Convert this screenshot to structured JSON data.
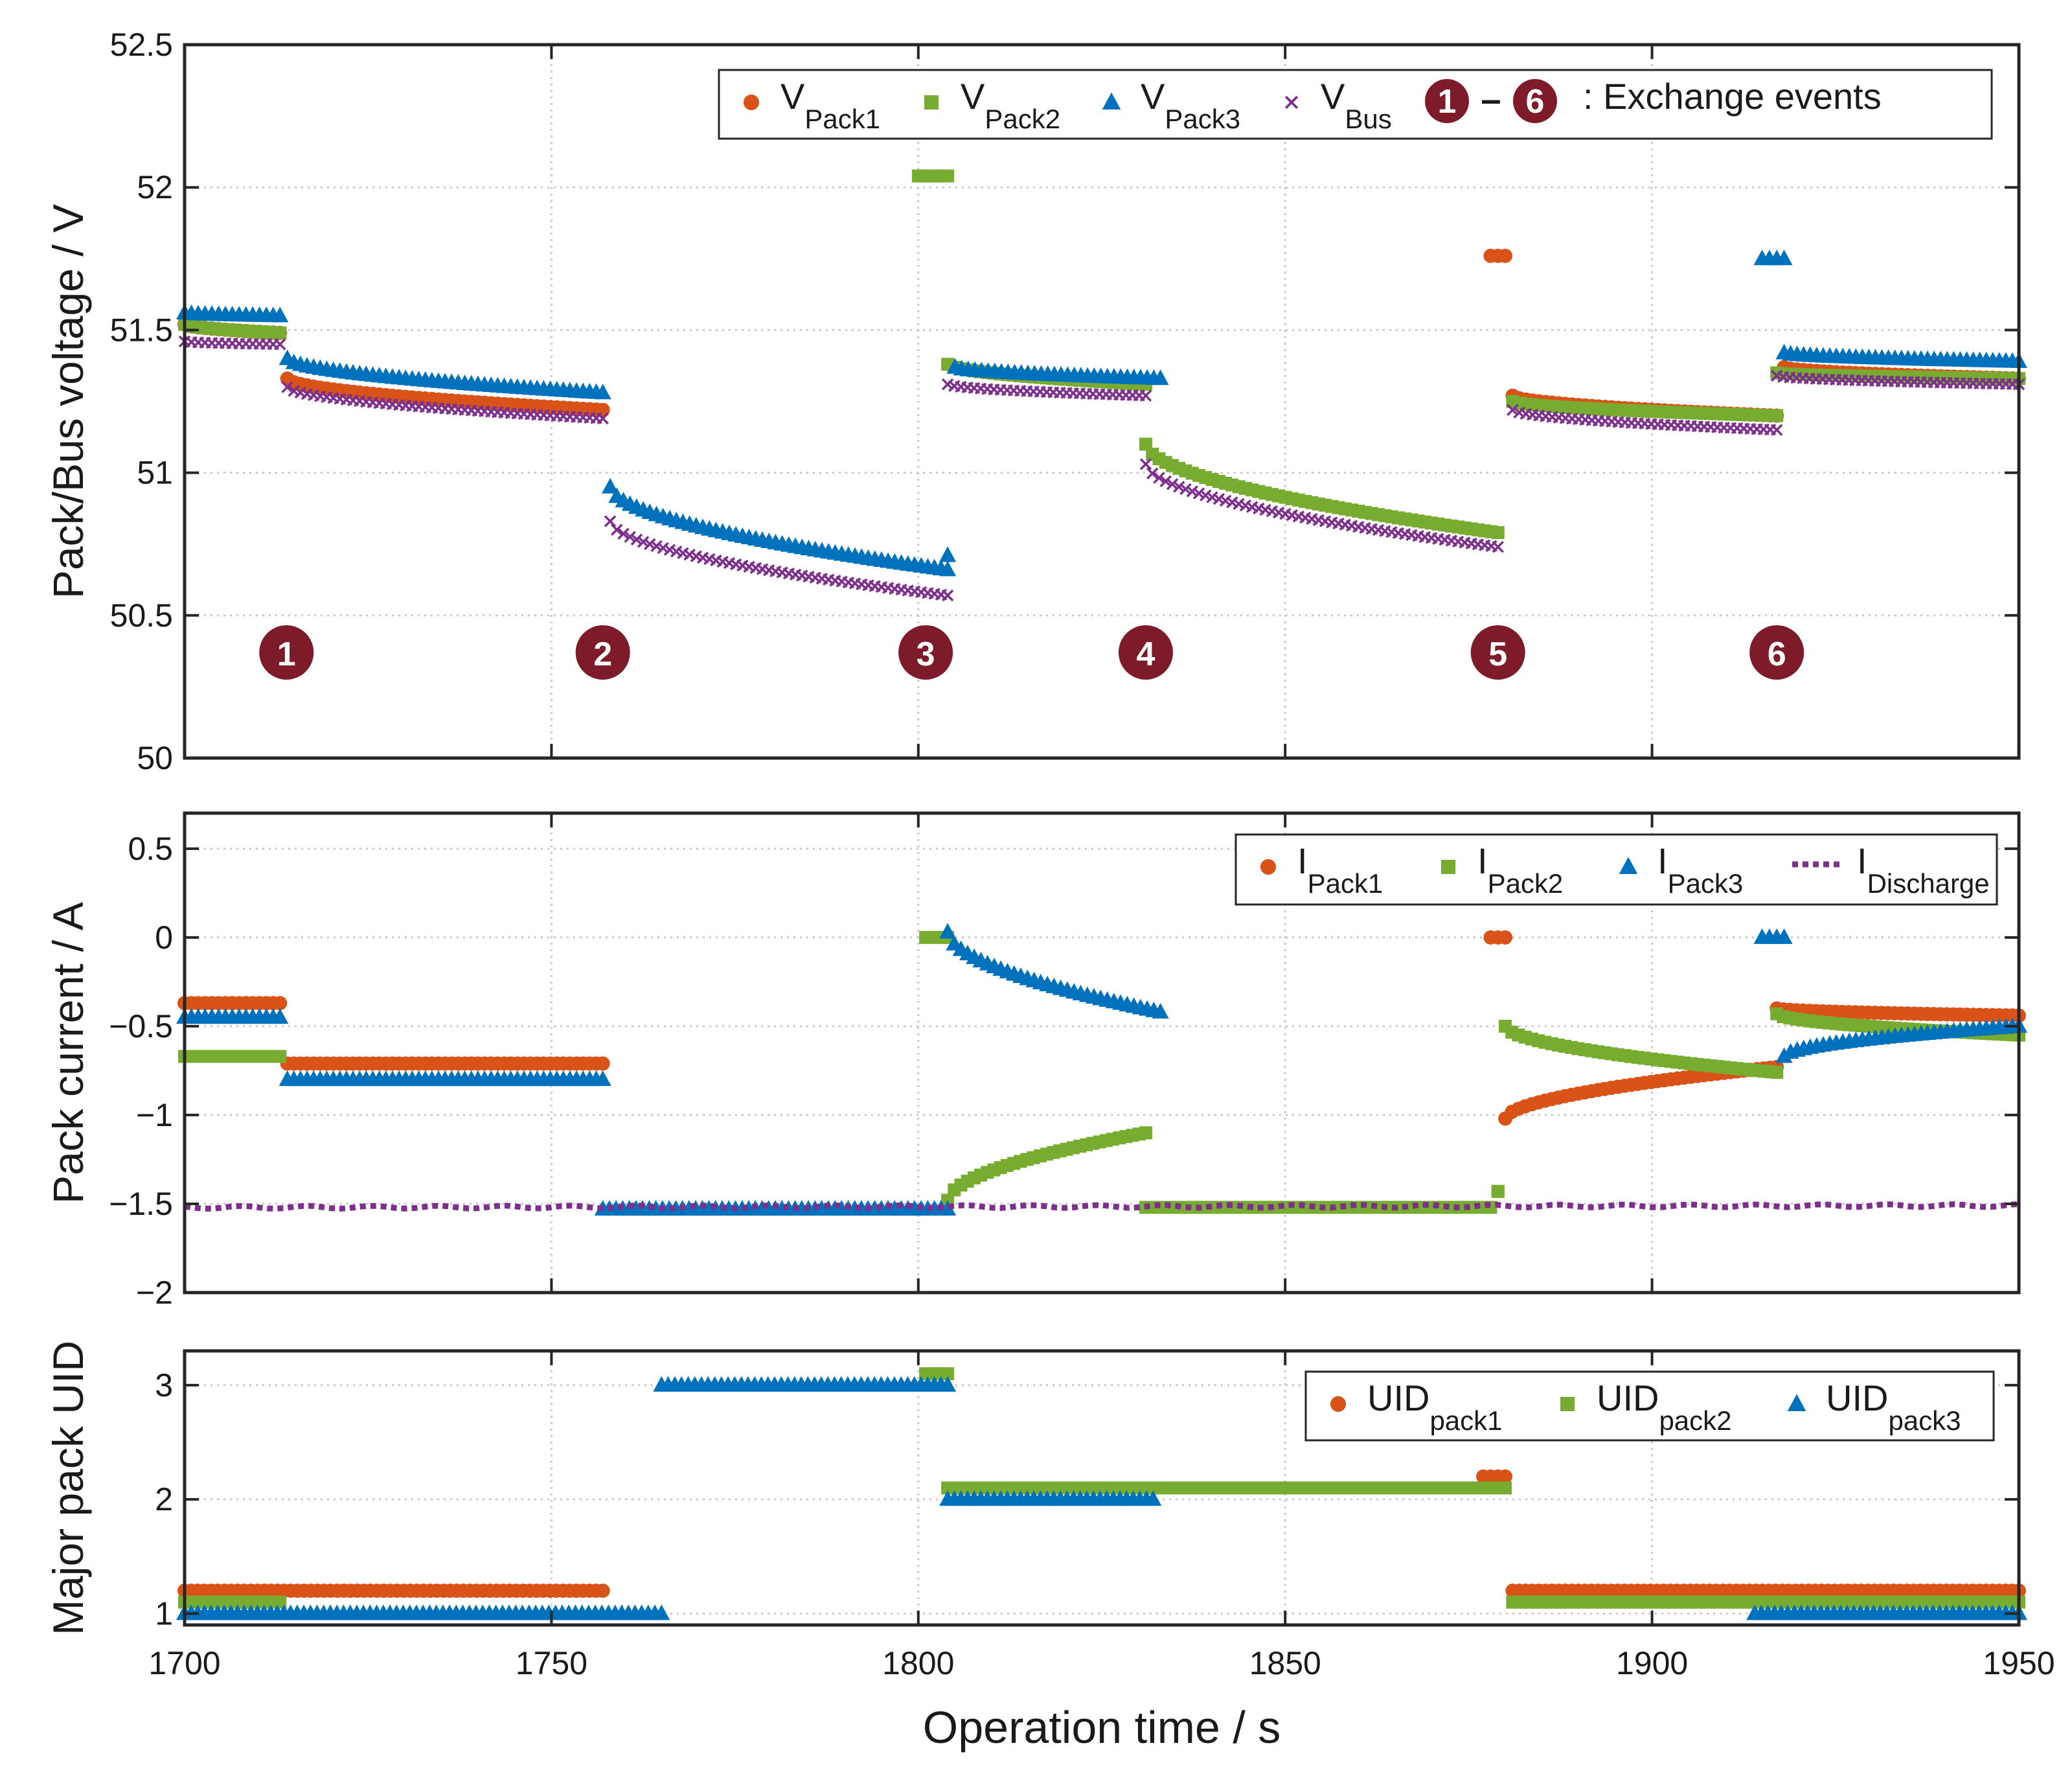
{
  "chart_data": [
    {
      "type": "scatter",
      "ylabel": "Pack/Bus voltage / V",
      "xlim": [
        1700,
        1950
      ],
      "ylim": [
        50,
        52.5
      ],
      "grid": true,
      "xticks": [
        "1700",
        "1750",
        "1800",
        "1850",
        "1900",
        "1950"
      ],
      "yticks": [
        "50",
        "50.5",
        "51",
        "51.5",
        "52",
        "52.5"
      ],
      "legend_position": "top-right",
      "legend": [
        {
          "name": "V",
          "sub": "Pack1",
          "marker": "circle",
          "color": "#D95319"
        },
        {
          "name": "V",
          "sub": "Pack2",
          "marker": "square",
          "color": "#77AC30"
        },
        {
          "name": "V",
          "sub": "Pack3",
          "marker": "triangle",
          "color": "#0072BD"
        },
        {
          "name": "V",
          "sub": "Bus",
          "marker": "x",
          "color": "#7E2F8E"
        }
      ],
      "events_legend": {
        "first": "1",
        "dash": "–",
        "last": "6",
        "label": ": Exchange events",
        "color": "#7D1B2A"
      },
      "events": [
        {
          "label": "1",
          "x": 1713
        },
        {
          "label": "2",
          "x": 1757
        },
        {
          "label": "3",
          "x": 1801
        },
        {
          "label": "4",
          "x": 1831
        },
        {
          "label": "5",
          "x": 1879
        },
        {
          "label": "6",
          "x": 1917
        }
      ],
      "series": [
        {
          "name": "VPack1",
          "segments": [
            {
              "x0": 1700,
              "x1": 1713,
              "y0": 51.52,
              "y1": 51.49
            },
            {
              "x0": 1714,
              "x1": 1757,
              "y0": 51.33,
              "y1": 51.22
            },
            {
              "x0": 1878,
              "x1": 1880,
              "y0": 51.76,
              "y1": 51.76
            },
            {
              "x0": 1881,
              "x1": 1917,
              "y0": 51.27,
              "y1": 51.2
            },
            {
              "x0": 1918,
              "x1": 1950,
              "y0": 51.37,
              "y1": 51.33
            }
          ]
        },
        {
          "name": "VPack2",
          "segments": [
            {
              "x0": 1700,
              "x1": 1713,
              "y0": 51.52,
              "y1": 51.49
            },
            {
              "x0": 1800,
              "x1": 1804,
              "y0": 52.04,
              "y1": 52.04
            },
            {
              "x0": 1804,
              "x1": 1831,
              "y0": 51.38,
              "y1": 51.31
            },
            {
              "x0": 1831,
              "x1": 1879,
              "y0": 51.1,
              "y1": 50.79
            },
            {
              "x0": 1881,
              "x1": 1917,
              "y0": 51.25,
              "y1": 51.2
            },
            {
              "x0": 1917,
              "x1": 1950,
              "y0": 51.35,
              "y1": 51.33
            }
          ]
        },
        {
          "name": "VPack3",
          "segments": [
            {
              "x0": 1700,
              "x1": 1713,
              "y0": 51.56,
              "y1": 51.55
            },
            {
              "x0": 1714,
              "x1": 1757,
              "y0": 51.4,
              "y1": 51.28
            },
            {
              "x0": 1758,
              "x1": 1804,
              "y0": 50.95,
              "y1": 50.66
            },
            {
              "x0": 1804,
              "x1": 1804,
              "y0": 50.71,
              "y1": 50.71
            },
            {
              "x0": 1805,
              "x1": 1833,
              "y0": 51.37,
              "y1": 51.33
            },
            {
              "x0": 1915,
              "x1": 1918,
              "y0": 51.75,
              "y1": 51.75
            },
            {
              "x0": 1918,
              "x1": 1950,
              "y0": 51.42,
              "y1": 51.39
            }
          ]
        },
        {
          "name": "VBus",
          "segments": [
            {
              "x0": 1700,
              "x1": 1713,
              "y0": 51.46,
              "y1": 51.45
            },
            {
              "x0": 1714,
              "x1": 1757,
              "y0": 51.3,
              "y1": 51.19
            },
            {
              "x0": 1758,
              "x1": 1804,
              "y0": 50.83,
              "y1": 50.57
            },
            {
              "x0": 1804,
              "x1": 1831,
              "y0": 51.31,
              "y1": 51.27
            },
            {
              "x0": 1831,
              "x1": 1879,
              "y0": 51.03,
              "y1": 50.74
            },
            {
              "x0": 1881,
              "x1": 1917,
              "y0": 51.22,
              "y1": 51.15
            },
            {
              "x0": 1917,
              "x1": 1950,
              "y0": 51.34,
              "y1": 51.31
            }
          ]
        }
      ]
    },
    {
      "type": "scatter",
      "ylabel": "Pack current / A",
      "xlim": [
        1700,
        1950
      ],
      "ylim": [
        -2,
        0.7
      ],
      "grid": true,
      "yticks": [
        "−2",
        "−1.5",
        "−1",
        "−0.5",
        "0",
        "0.5"
      ],
      "legend_position": "top-right",
      "legend": [
        {
          "name": "I",
          "sub": "Pack1",
          "marker": "circle",
          "color": "#D95319"
        },
        {
          "name": "I",
          "sub": "Pack2",
          "marker": "square",
          "color": "#77AC30"
        },
        {
          "name": "I",
          "sub": "Pack3",
          "marker": "triangle",
          "color": "#0072BD"
        },
        {
          "name": "I",
          "sub": "Discharge",
          "marker": "dotted-line",
          "color": "#7E2F8E"
        }
      ],
      "series": [
        {
          "name": "IPack1",
          "segments": [
            {
              "x0": 1700,
              "x1": 1713,
              "y0": -0.37,
              "y1": -0.37
            },
            {
              "x0": 1714,
              "x1": 1757,
              "y0": -0.71,
              "y1": -0.71
            },
            {
              "x0": 1878,
              "x1": 1880,
              "y0": 0.0,
              "y1": 0.0
            },
            {
              "x0": 1880,
              "x1": 1917,
              "y0": -1.02,
              "y1": -0.73
            },
            {
              "x0": 1917,
              "x1": 1950,
              "y0": -0.4,
              "y1": -0.44
            }
          ]
        },
        {
          "name": "IPack2",
          "segments": [
            {
              "x0": 1700,
              "x1": 1713,
              "y0": -0.67,
              "y1": -0.67
            },
            {
              "x0": 1801,
              "x1": 1804,
              "y0": 0.0,
              "y1": 0.0
            },
            {
              "x0": 1804,
              "x1": 1831,
              "y0": -1.48,
              "y1": -1.1
            },
            {
              "x0": 1831,
              "x1": 1878,
              "y0": -1.52,
              "y1": -1.52
            },
            {
              "x0": 1879,
              "x1": 1879,
              "y0": -1.43,
              "y1": -1.43
            },
            {
              "x0": 1880,
              "x1": 1917,
              "y0": -0.5,
              "y1": -0.76
            },
            {
              "x0": 1917,
              "x1": 1950,
              "y0": -0.43,
              "y1": -0.55
            }
          ]
        },
        {
          "name": "IPack3",
          "segments": [
            {
              "x0": 1700,
              "x1": 1713,
              "y0": -0.45,
              "y1": -0.45
            },
            {
              "x0": 1714,
              "x1": 1757,
              "y0": -0.8,
              "y1": -0.8
            },
            {
              "x0": 1757,
              "x1": 1804,
              "y0": -1.53,
              "y1": -1.53
            },
            {
              "x0": 1804,
              "x1": 1833,
              "y0": 0.03,
              "y1": -0.42
            },
            {
              "x0": 1915,
              "x1": 1918,
              "y0": 0.0,
              "y1": 0.0
            },
            {
              "x0": 1918,
              "x1": 1950,
              "y0": -0.67,
              "y1": -0.5
            }
          ]
        },
        {
          "name": "IDischarge",
          "segments": [
            {
              "x0": 1700,
              "x1": 1950,
              "y0": -1.52,
              "y1": -1.51
            }
          ]
        }
      ]
    },
    {
      "type": "scatter",
      "ylabel": "Major pack UID",
      "xlabel": "Operation time / s",
      "xlim": [
        1700,
        1950
      ],
      "ylim": [
        0.9,
        3.3
      ],
      "grid": true,
      "yticks": [
        "1",
        "2",
        "3"
      ],
      "legend_position": "top-right",
      "legend": [
        {
          "name": "UID",
          "sub": "pack1",
          "marker": "circle",
          "color": "#D95319"
        },
        {
          "name": "UID",
          "sub": "pack2",
          "marker": "square",
          "color": "#77AC30"
        },
        {
          "name": "UID",
          "sub": "pack3",
          "marker": "triangle",
          "color": "#0072BD"
        }
      ],
      "series": [
        {
          "name": "UIDpack1",
          "segments": [
            {
              "x0": 1700,
              "x1": 1757,
              "y0": 1.2,
              "y1": 1.2
            },
            {
              "x0": 1877,
              "x1": 1880,
              "y0": 2.2,
              "y1": 2.2
            },
            {
              "x0": 1881,
              "x1": 1950,
              "y0": 1.2,
              "y1": 1.2
            }
          ]
        },
        {
          "name": "UIDpack2",
          "segments": [
            {
              "x0": 1700,
              "x1": 1713,
              "y0": 1.1,
              "y1": 1.1
            },
            {
              "x0": 1801,
              "x1": 1804,
              "y0": 3.1,
              "y1": 3.1
            },
            {
              "x0": 1804,
              "x1": 1880,
              "y0": 2.1,
              "y1": 2.1
            },
            {
              "x0": 1881,
              "x1": 1950,
              "y0": 1.1,
              "y1": 1.1
            }
          ]
        },
        {
          "name": "UIDpack3",
          "segments": [
            {
              "x0": 1700,
              "x1": 1765,
              "y0": 1.0,
              "y1": 1.0
            },
            {
              "x0": 1765,
              "x1": 1804,
              "y0": 3.0,
              "y1": 3.0
            },
            {
              "x0": 1804,
              "x1": 1832,
              "y0": 2.0,
              "y1": 2.0
            },
            {
              "x0": 1914,
              "x1": 1950,
              "y0": 1.0,
              "y1": 1.0
            }
          ]
        }
      ]
    }
  ]
}
